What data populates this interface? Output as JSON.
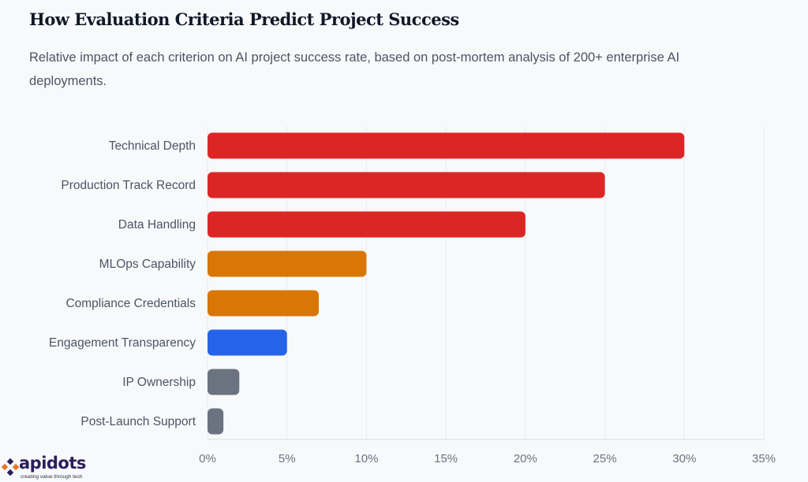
{
  "title": "How Evaluation Criteria Predict Project Success",
  "subtitle": "Relative impact of each criterion on AI project success rate, based on post-mortem analysis of 200+ enterprise AI deployments.",
  "logo": {
    "name": "apidots",
    "tagline": "creating value through tech"
  },
  "chart_data": {
    "type": "bar",
    "orientation": "horizontal",
    "categories": [
      "Technical Depth",
      "Production Track Record",
      "Data Handling",
      "MLOps Capability",
      "Compliance Credentials",
      "Engagement Transparency",
      "IP Ownership",
      "Post-Launch Support"
    ],
    "values": [
      30,
      25,
      20,
      10,
      7,
      5,
      2,
      1
    ],
    "colors": [
      "#dc2626",
      "#dc2626",
      "#dc2626",
      "#d97706",
      "#d97706",
      "#2563eb",
      "#6b7280",
      "#6b7280"
    ],
    "xlim": [
      0,
      35
    ],
    "xticks": [
      0,
      5,
      10,
      15,
      20,
      25,
      30,
      35
    ],
    "tick_format": "%",
    "grid": "vertical",
    "xlabel": "",
    "ylabel": ""
  }
}
